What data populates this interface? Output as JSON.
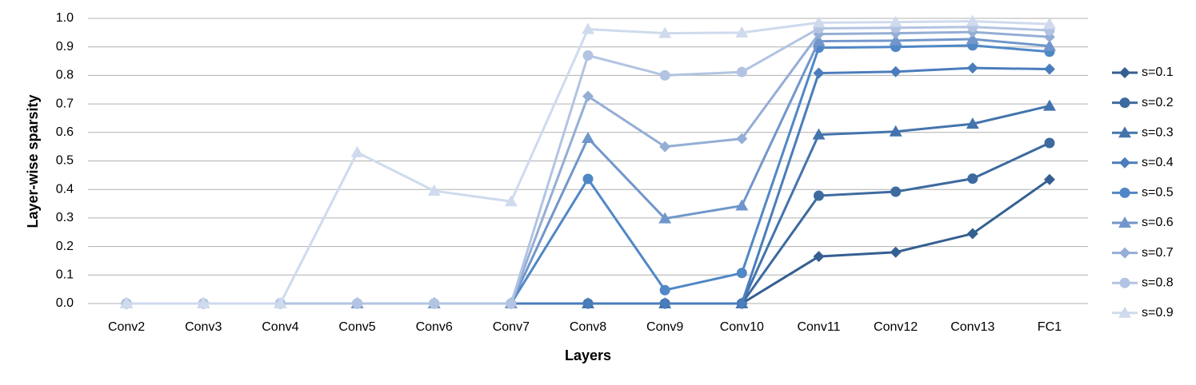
{
  "chart_data": {
    "type": "line",
    "y_label": "Layer-wise sparsity",
    "x_label": "Layers",
    "categories": [
      "Conv2",
      "Conv3",
      "Conv4",
      "Conv5",
      "Conv6",
      "Conv7",
      "Conv8",
      "Conv9",
      "Conv10",
      "Conv11",
      "Conv12",
      "Conv13",
      "FC1"
    ],
    "ylim": [
      0,
      1
    ],
    "yticks": [
      {
        "value": 0,
        "label": "0.0"
      },
      {
        "value": 0.1,
        "label": "0.1"
      },
      {
        "value": 0.2,
        "label": "0.2"
      },
      {
        "value": 0.3,
        "label": "0.3"
      },
      {
        "value": 0.4,
        "label": "0.4"
      },
      {
        "value": 0.5,
        "label": "0.5"
      },
      {
        "value": 0.6,
        "label": "0.6"
      },
      {
        "value": 0.7,
        "label": "0.7"
      },
      {
        "value": 0.8,
        "label": "0.8"
      },
      {
        "value": 0.9,
        "label": "0.9"
      },
      {
        "value": 1,
        "label": "1.0"
      }
    ],
    "grid": true,
    "legend": "right",
    "series": [
      {
        "name": "s=0.1",
        "color": "#355f91",
        "marker": "diamond",
        "values": [
          0,
          0,
          0,
          0,
          0,
          0,
          0,
          0,
          0,
          0.165,
          0.18,
          0.245,
          0.435
        ]
      },
      {
        "name": "s=0.2",
        "color": "#3d6a9f",
        "marker": "circle",
        "values": [
          0,
          0,
          0,
          0,
          0,
          0,
          0,
          0,
          0,
          0.378,
          0.392,
          0.438,
          0.563
        ]
      },
      {
        "name": "s=0.3",
        "color": "#4474ad",
        "marker": "triangle",
        "values": [
          0,
          0,
          0,
          0,
          0,
          0,
          0,
          0,
          0,
          0.592,
          0.603,
          0.63,
          0.693
        ]
      },
      {
        "name": "s=0.4",
        "color": "#4a7dbb",
        "marker": "diamond",
        "values": [
          0,
          0,
          0,
          0,
          0,
          0,
          0,
          0,
          0,
          0.808,
          0.813,
          0.826,
          0.822
        ]
      },
      {
        "name": "s=0.5",
        "color": "#5087c6",
        "marker": "circle",
        "values": [
          0,
          0,
          0,
          0,
          0,
          0,
          0.437,
          0.047,
          0.107,
          0.897,
          0.9,
          0.905,
          0.883
        ]
      },
      {
        "name": "s=0.6",
        "color": "#7196cb",
        "marker": "triangle",
        "values": [
          0,
          0,
          0,
          0,
          0,
          0,
          0.58,
          0.298,
          0.343,
          0.92,
          0.922,
          0.927,
          0.903
        ]
      },
      {
        "name": "s=0.7",
        "color": "#94aed5",
        "marker": "diamond",
        "values": [
          0,
          0,
          0,
          0,
          0,
          0,
          0.727,
          0.55,
          0.578,
          0.945,
          0.948,
          0.952,
          0.935
        ]
      },
      {
        "name": "s=0.8",
        "color": "#b2c4e2",
        "marker": "circle",
        "values": [
          0,
          0,
          0,
          0,
          0,
          0,
          0.87,
          0.8,
          0.812,
          0.965,
          0.967,
          0.97,
          0.958
        ]
      },
      {
        "name": "s=0.9",
        "color": "#cfdaed",
        "marker": "triangle",
        "values": [
          0,
          0,
          0,
          0.53,
          0.395,
          0.358,
          0.962,
          0.948,
          0.95,
          0.985,
          0.987,
          0.99,
          0.98
        ]
      }
    ]
  }
}
